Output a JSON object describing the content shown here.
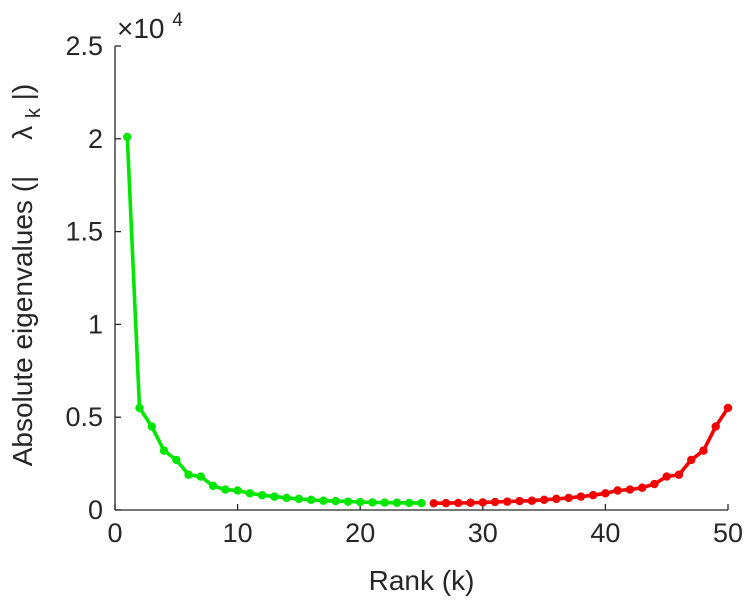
{
  "chart_data": {
    "type": "line",
    "xlabel": "Rank (k)",
    "ylabel_main": "Absolute eigenvalues (|",
    "ylabel_symbol": "λ",
    "ylabel_subscript": "k",
    "ylabel_close": "|)",
    "exponent_base": "×10",
    "exponent_power": "4",
    "xlim": [
      0,
      50
    ],
    "ylim": [
      0,
      2.5
    ],
    "xticks": [
      0,
      10,
      20,
      30,
      40,
      50
    ],
    "xtick_labels": [
      "0",
      "10",
      "20",
      "30",
      "40",
      "50"
    ],
    "yticks": [
      0,
      0.5,
      1,
      1.5,
      2,
      2.5
    ],
    "ytick_labels": [
      "0",
      "0.5",
      "1",
      "1.5",
      "2",
      "2.5"
    ],
    "grid": false,
    "series": [
      {
        "color": "#00e600",
        "x": [
          1,
          2,
          3,
          4,
          5,
          6,
          7,
          8,
          9,
          10,
          11,
          12,
          13,
          14,
          15,
          16,
          17,
          18,
          19,
          20,
          21,
          22,
          23,
          24,
          25
        ],
        "y": [
          2.01,
          0.55,
          0.45,
          0.32,
          0.27,
          0.19,
          0.18,
          0.13,
          0.11,
          0.105,
          0.09,
          0.08,
          0.072,
          0.065,
          0.06,
          0.055,
          0.05,
          0.048,
          0.045,
          0.043,
          0.041,
          0.04,
          0.039,
          0.038,
          0.037
        ]
      },
      {
        "color": "#f20000",
        "x": [
          26,
          27,
          28,
          29,
          30,
          31,
          32,
          33,
          34,
          35,
          36,
          37,
          38,
          39,
          40,
          41,
          42,
          43,
          44,
          45,
          46,
          47,
          48,
          49,
          50
        ],
        "y": [
          0.036,
          0.037,
          0.038,
          0.039,
          0.041,
          0.043,
          0.045,
          0.048,
          0.05,
          0.055,
          0.06,
          0.065,
          0.072,
          0.08,
          0.09,
          0.105,
          0.11,
          0.12,
          0.14,
          0.18,
          0.19,
          0.27,
          0.32,
          0.45,
          0.55
        ]
      }
    ]
  }
}
